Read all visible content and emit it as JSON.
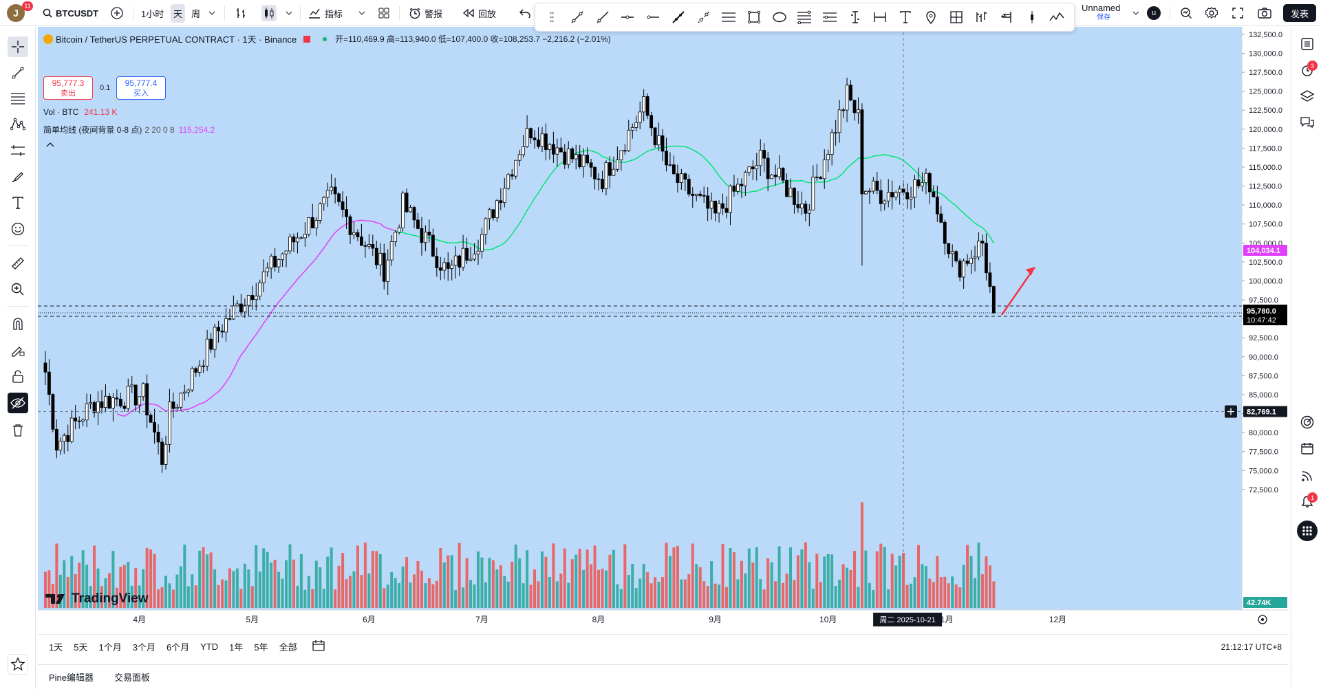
{
  "topbar": {
    "avatar_letter": "J",
    "avatar_badge": "11",
    "symbol": "BTCUSDT",
    "intervals": [
      "1小时",
      "天",
      "周"
    ],
    "active_interval": "天",
    "indicators_label": "指标",
    "alert_label": "警报",
    "replay_label": "回放",
    "layout_name": "Unnamed",
    "layout_status": "保存",
    "user_initial": "u",
    "publish_label": "发表"
  },
  "legend": {
    "title": "Bitcoin / TetherUS PERPETUAL CONTRACT · 1天 · Binance",
    "ohlc": "开=110,469.9 高=113,940.0 低=107,400.0 收=108,253.7 −2,216.2 (−2.01%)",
    "sell_price": "95,777.3",
    "sell_label": "卖出",
    "spread": "0.1",
    "buy_price": "95,777.4",
    "buy_label": "买入",
    "vol_label": "Vol · BTC",
    "vol_value": "241.13 K",
    "ma_label": "简单均线 (夜间背景 0-8 点)",
    "ma_params": "2 20 0 8",
    "ma_value": "115,254.2"
  },
  "price_axis": {
    "ticks": [
      "132,500.0",
      "130,000.0",
      "127,500.0",
      "125,000.0",
      "122,500.0",
      "120,000.0",
      "117,500.0",
      "115,000.0",
      "112,500.0",
      "110,000.0",
      "107,500.0",
      "105,000.0",
      "102,500.0",
      "100,000.0",
      "97,500.0",
      "95,000.0",
      "92,500.0",
      "90,000.0",
      "87,500.0",
      "85,000.0",
      "82,500.0",
      "80,000.0",
      "77,500.0",
      "75,000.0",
      "72,500.0"
    ],
    "ma_label": "104,034.1",
    "last_price": "95,780.0",
    "countdown": "10:47:42",
    "crosshair_price": "82,769.1",
    "volume_label": "42.74K"
  },
  "time_axis": {
    "months": [
      "4月",
      "5月",
      "6月",
      "7月",
      "8月",
      "9月",
      "10月",
      "11月",
      "12月"
    ],
    "crosshair_date": "周二 2025-10-21"
  },
  "colors": {
    "background": "#bbd9f8",
    "up": "#ffffff",
    "down": "#000000",
    "vol_up": "#26a69a",
    "vol_down": "#ef5350",
    "ma_fast": "#e040fb",
    "ma_slow": "#00e676",
    "arrow": "#f23645"
  },
  "bottom": {
    "ranges": [
      "1天",
      "5天",
      "1个月",
      "3个月",
      "6个月",
      "YTD",
      "1年",
      "5年",
      "全部"
    ],
    "clock": "21:12:17 UTC+8"
  },
  "tabs": [
    "Pine编辑器",
    "交易面板"
  ],
  "watermark": "TradingView",
  "chart_data": {
    "type": "candlestick",
    "symbol": "BTCUSDT",
    "interval": "1D",
    "ylim": [
      71000,
      133500
    ],
    "anchors": [
      {
        "date": "2025-03-07",
        "close": 88000
      },
      {
        "date": "2025-03-10",
        "close": 78500
      },
      {
        "date": "2025-03-20",
        "close": 84000
      },
      {
        "date": "2025-04-02",
        "close": 85000
      },
      {
        "date": "2025-04-07",
        "close": 76500
      },
      {
        "date": "2025-04-09",
        "close": 82500
      },
      {
        "date": "2025-04-22",
        "close": 93500
      },
      {
        "date": "2025-05-08",
        "close": 103000
      },
      {
        "date": "2025-05-22",
        "close": 111000
      },
      {
        "date": "2025-06-05",
        "close": 101500
      },
      {
        "date": "2025-06-10",
        "close": 110000
      },
      {
        "date": "2025-06-22",
        "close": 101000
      },
      {
        "date": "2025-07-01",
        "close": 106000
      },
      {
        "date": "2025-07-11",
        "close": 117500
      },
      {
        "date": "2025-07-14",
        "close": 120000
      },
      {
        "date": "2025-08-02",
        "close": 113500
      },
      {
        "date": "2025-08-13",
        "close": 123000
      },
      {
        "date": "2025-08-20",
        "close": 114000
      },
      {
        "date": "2025-09-01",
        "close": 108500
      },
      {
        "date": "2025-09-13",
        "close": 116000
      },
      {
        "date": "2025-09-25",
        "close": 109500
      },
      {
        "date": "2025-10-06",
        "close": 124500
      },
      {
        "date": "2025-10-09",
        "close": 121500
      },
      {
        "date": "2025-10-10",
        "close": 112500
      },
      {
        "date": "2025-10-15",
        "close": 111500
      },
      {
        "date": "2025-10-28",
        "close": 113000
      },
      {
        "date": "2025-11-04",
        "close": 101500
      },
      {
        "date": "2025-11-11",
        "close": 105000
      },
      {
        "date": "2025-11-14",
        "close": 95780
      }
    ]
  }
}
